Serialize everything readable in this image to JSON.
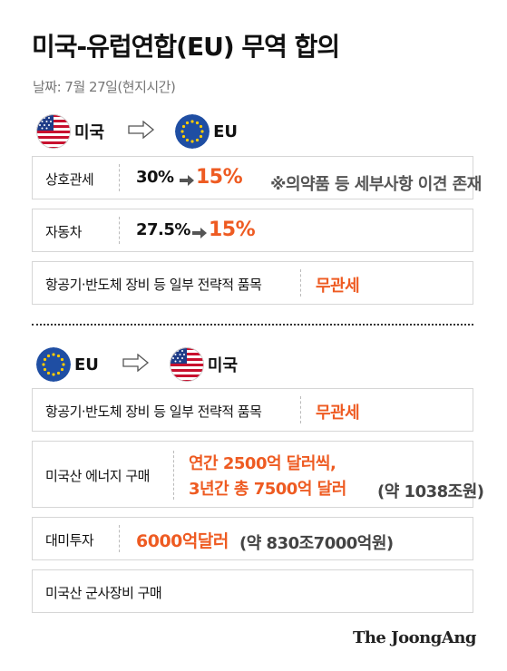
{
  "title": "미국-유럽연합(EU) 무역 합의",
  "date": "날짜: 7월 27일(현지시간)",
  "section1": {
    "from": "미국",
    "to": "EU",
    "rows": [
      {
        "label": "상호관세",
        "before": "30%",
        "after": "15%",
        "note": "※의약품 등 세부사항 이견 존재"
      },
      {
        "label": "자동차",
        "before": "27.5%",
        "after": "15%"
      },
      {
        "label": "항공기·반도체 장비 등 일부 전략적 품목",
        "value": "무관세"
      }
    ]
  },
  "section2": {
    "from": "EU",
    "to": "미국",
    "rows": [
      {
        "label": "항공기·반도체 장비 등 일부 전략적 품목",
        "value": "무관세"
      },
      {
        "label": "미국산 에너지 구매",
        "line1": "연간 2500억 달러씩,",
        "line2": "3년간 총 7500억 달러",
        "line2_note": "(약 1038조원)"
      },
      {
        "label": "대미투자",
        "value": "6000억달러",
        "value_note": "(약 830조7000억원)"
      },
      {
        "label": "미국산 군사장비 구매"
      }
    ]
  },
  "brand": "The JoongAng",
  "colors": {
    "accent": "#ee5b22",
    "border": "#d6d6d6",
    "us_red": "#c8102e",
    "us_blue": "#1f3c88",
    "eu_blue": "#1f4ea3",
    "eu_star": "#ffcc00"
  }
}
